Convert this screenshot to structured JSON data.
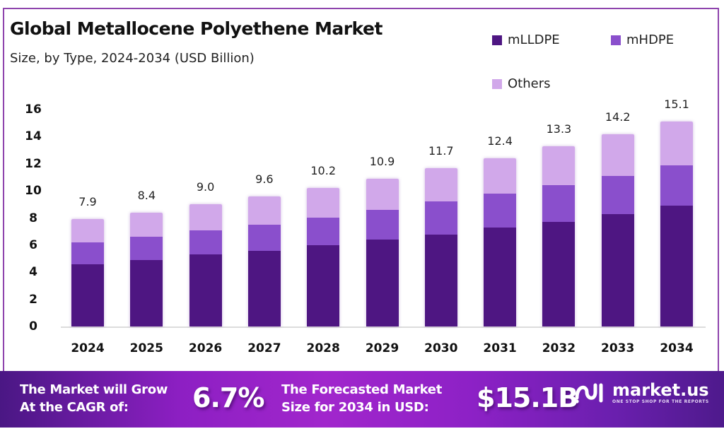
{
  "header": {
    "title": "Global Metallocene Polyethene Market",
    "subtitle": "Size, by Type, 2024-2034 (USD Billion)"
  },
  "legend": [
    {
      "label": "mLLDPE",
      "color": "#4e1682"
    },
    {
      "label": "mHDPE",
      "color": "#8a4fcc"
    },
    {
      "label": "Others",
      "color": "#d1a8ea"
    }
  ],
  "y_ticks": [
    "0",
    "2",
    "4",
    "6",
    "8",
    "10",
    "12",
    "14",
    "16"
  ],
  "chart_data": {
    "type": "bar",
    "stacked": true,
    "title": "Global Metallocene Polyethene Market",
    "subtitle": "Size, by Type, 2024-2034 (USD Billion)",
    "xlabel": "",
    "ylabel": "USD Billion",
    "ylim": [
      0,
      16
    ],
    "y_ticks": [
      0,
      2,
      4,
      6,
      8,
      10,
      12,
      14,
      16
    ],
    "grid": false,
    "legend_position": "top-right",
    "categories": [
      "2024",
      "2025",
      "2026",
      "2027",
      "2028",
      "2029",
      "2030",
      "2031",
      "2032",
      "2033",
      "2034"
    ],
    "series": [
      {
        "name": "mLLDPE",
        "color": "#4e1682",
        "values": [
          4.6,
          4.9,
          5.3,
          5.6,
          6.0,
          6.4,
          6.8,
          7.3,
          7.7,
          8.3,
          8.9
        ]
      },
      {
        "name": "mHDPE",
        "color": "#8a4fcc",
        "values": [
          1.6,
          1.7,
          1.8,
          1.9,
          2.0,
          2.2,
          2.4,
          2.5,
          2.7,
          2.8,
          3.0
        ]
      },
      {
        "name": "Others",
        "color": "#d1a8ea",
        "values": [
          1.7,
          1.8,
          1.9,
          2.1,
          2.2,
          2.3,
          2.5,
          2.6,
          2.9,
          3.1,
          3.2
        ]
      }
    ],
    "totals": [
      7.9,
      8.4,
      9.0,
      9.6,
      10.2,
      10.9,
      11.7,
      12.4,
      13.3,
      14.2,
      15.1
    ],
    "total_labels": [
      "7.9",
      "8.4",
      "9.0",
      "9.6",
      "10.2",
      "10.9",
      "11.7",
      "12.4",
      "13.3",
      "14.2",
      "15.1"
    ]
  },
  "banner": {
    "cagr_text_line1": "The Market will Grow",
    "cagr_text_line2": "At the CAGR of:",
    "cagr_value": "6.7%",
    "forecast_text_line1": "The Forecasted Market",
    "forecast_text_line2": "Size for 2034 in USD:",
    "forecast_value": "$15.1B",
    "logo_name": "market.us",
    "logo_tagline": "ONE STOP SHOP FOR THE REPORTS"
  }
}
